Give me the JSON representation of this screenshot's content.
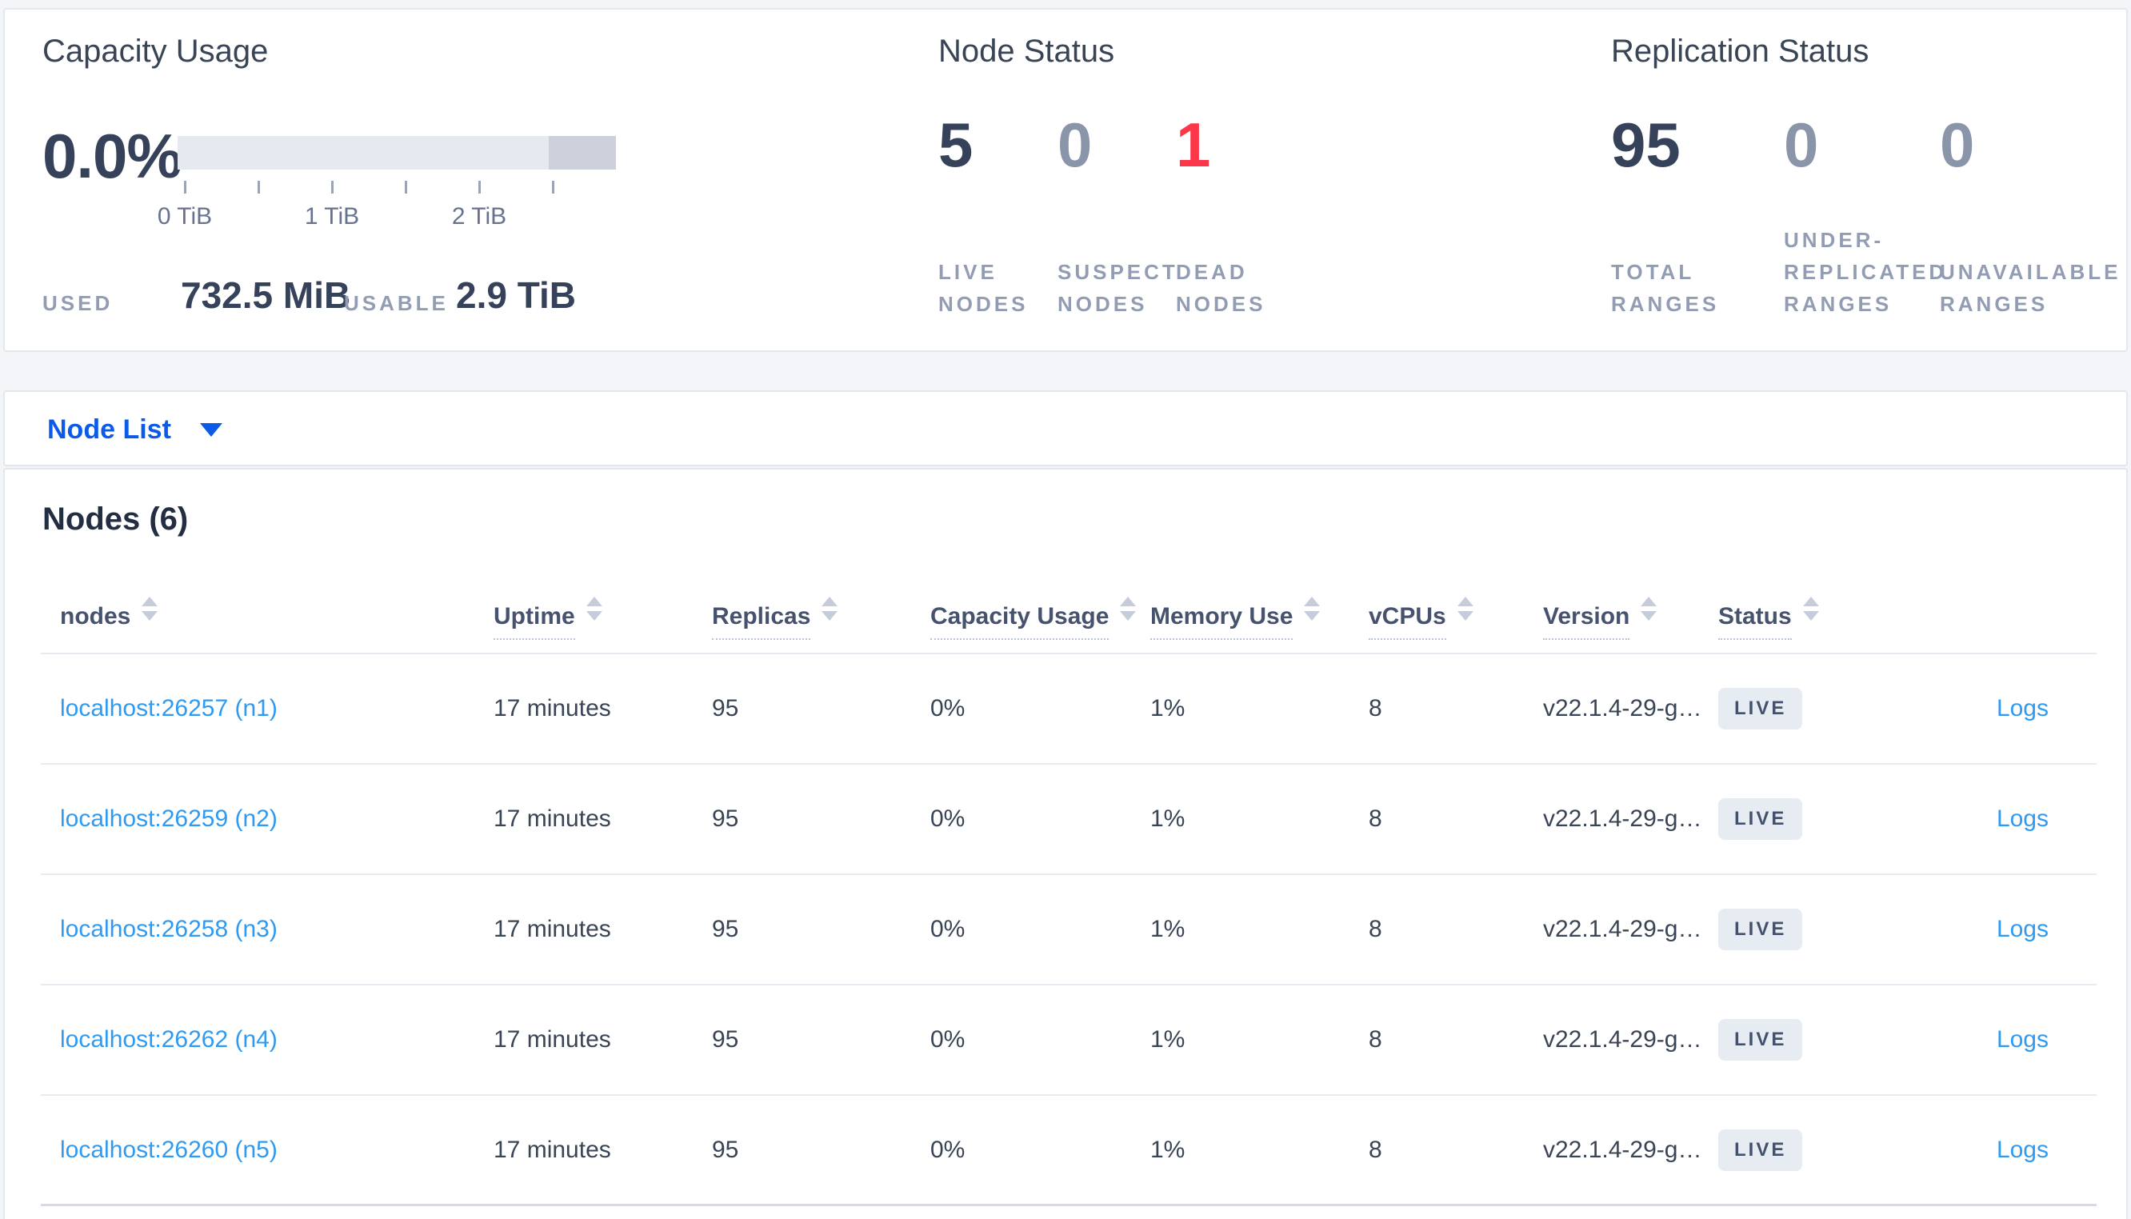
{
  "colors": {
    "page_bg": "#f3f5f9",
    "card_bg": "#ffffff",
    "primary_text": "#36425a",
    "muted_text": "#8b95aa",
    "label_text": "#929cb3",
    "dead_red": "#fd374a",
    "nav_link_blue": "#0b5be8",
    "table_link_blue": "#2e9af2",
    "badge_bg": "#e7ebf2",
    "bar_light": "#e6e9ef",
    "bar_dark": "#ccd1dc"
  },
  "summary": {
    "capacity": {
      "title": "Capacity Usage",
      "percent": "0.0%",
      "tick_labels": [
        "0 TiB",
        "",
        "1 TiB",
        "",
        "2 TiB",
        ""
      ],
      "used_label": "USED",
      "used_value": "732.5 MiB",
      "usable_label": "USABLE",
      "usable_value": "2.9 TiB"
    },
    "node_status": {
      "title": "Node Status",
      "stats": [
        {
          "value": "5",
          "label": "LIVE\nNODES",
          "tone": "dark"
        },
        {
          "value": "0",
          "label": "SUSPECT\nNODES",
          "tone": "muted"
        },
        {
          "value": "1",
          "label": "DEAD\nNODES",
          "tone": "red"
        }
      ]
    },
    "replication": {
      "title": "Replication Status",
      "stats": [
        {
          "value": "95",
          "label": "TOTAL\nRANGES",
          "tone": "dark"
        },
        {
          "value": "0",
          "label": "UNDER-\nREPLICATED\nRANGES",
          "tone": "muted"
        },
        {
          "value": "0",
          "label": "UNAVAILABLE\nRANGES",
          "tone": "muted"
        }
      ]
    }
  },
  "node_list": {
    "label": "Node List"
  },
  "nodes_panel": {
    "title": "Nodes (6)",
    "columns": [
      "nodes",
      "Uptime",
      "Replicas",
      "Capacity Usage",
      "Memory Use",
      "vCPUs",
      "Version",
      "Status"
    ],
    "rows": [
      {
        "node": "localhost:26257 (n1)",
        "uptime": "17 minutes",
        "replicas": "95",
        "capacity": "0%",
        "memory": "1%",
        "vcpus": "8",
        "version": "v22.1.4-29-g…",
        "status": "LIVE",
        "logs": "Logs"
      },
      {
        "node": "localhost:26259 (n2)",
        "uptime": "17 minutes",
        "replicas": "95",
        "capacity": "0%",
        "memory": "1%",
        "vcpus": "8",
        "version": "v22.1.4-29-g…",
        "status": "LIVE",
        "logs": "Logs"
      },
      {
        "node": "localhost:26258 (n3)",
        "uptime": "17 minutes",
        "replicas": "95",
        "capacity": "0%",
        "memory": "1%",
        "vcpus": "8",
        "version": "v22.1.4-29-g…",
        "status": "LIVE",
        "logs": "Logs"
      },
      {
        "node": "localhost:26262 (n4)",
        "uptime": "17 minutes",
        "replicas": "95",
        "capacity": "0%",
        "memory": "1%",
        "vcpus": "8",
        "version": "v22.1.4-29-g…",
        "status": "LIVE",
        "logs": "Logs"
      },
      {
        "node": "localhost:26260 (n5)",
        "uptime": "17 minutes",
        "replicas": "95",
        "capacity": "0%",
        "memory": "1%",
        "vcpus": "8",
        "version": "v22.1.4-29-g…",
        "status": "LIVE",
        "logs": "Logs"
      }
    ]
  }
}
